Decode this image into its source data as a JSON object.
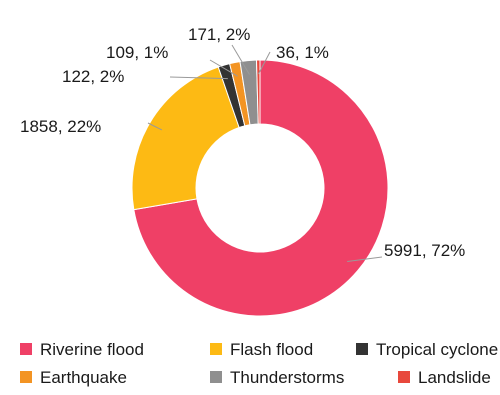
{
  "chart_data": {
    "type": "pie",
    "donut": true,
    "title": "",
    "series": [
      {
        "name": "Riverine flood",
        "value": 5991,
        "label": "5991, 72%",
        "color": "#EF4066"
      },
      {
        "name": "Flash flood",
        "value": 1858,
        "label": "1858, 22%",
        "color": "#FDBA14"
      },
      {
        "name": "Tropical cyclone",
        "value": 122,
        "label": "122, 2%",
        "color": "#333333"
      },
      {
        "name": "Earthquake",
        "value": 109,
        "label": "109, 1%",
        "color": "#F39423"
      },
      {
        "name": "Thunderstorms",
        "value": 171,
        "label": "171, 2%",
        "color": "#8F8F8F"
      },
      {
        "name": "Landslide",
        "value": 36,
        "label": "36, 1%",
        "color": "#E8483C"
      }
    ],
    "legend": {
      "position": "bottom"
    }
  }
}
